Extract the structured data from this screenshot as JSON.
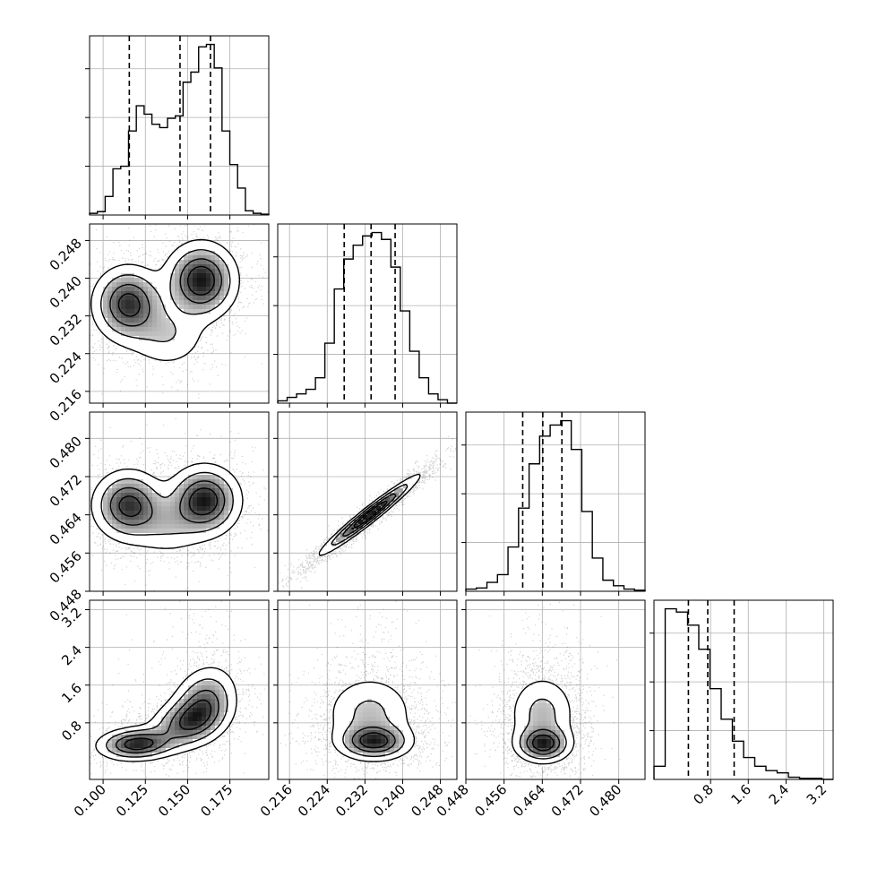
{
  "chart_data": {
    "type": "corner",
    "grid": true,
    "n_params": 4,
    "params": [
      {
        "range": [
          0.092,
          0.198
        ],
        "ticks": [
          0.1,
          0.125,
          0.15,
          0.175
        ],
        "tick_labels": [
          "0.100",
          "0.125",
          "0.150",
          "0.175"
        ]
      },
      {
        "range": [
          0.2135,
          0.2515
        ],
        "ticks": [
          0.216,
          0.224,
          0.232,
          0.24,
          0.248
        ],
        "tick_labels": [
          "0.216",
          "0.224",
          "0.232",
          "0.240",
          "0.248"
        ]
      },
      {
        "range": [
          0.448,
          0.4855
        ],
        "ticks": [
          0.448,
          0.456,
          0.464,
          0.472,
          0.48
        ],
        "tick_labels": [
          "0.448",
          "0.456",
          "0.464",
          "0.472",
          "0.480"
        ]
      },
      {
        "range": [
          -0.4,
          3.4
        ],
        "ticks": [
          0.8,
          1.6,
          2.4,
          3.2
        ],
        "tick_labels": [
          "0.8",
          "1.6",
          "2.4",
          "3.2"
        ]
      }
    ],
    "histograms": [
      {
        "param": 0,
        "edges": [
          0.092,
          0.198
        ],
        "counts": [
          2,
          4,
          22,
          55,
          58,
          100,
          130,
          120,
          108,
          104,
          115,
          118,
          158,
          170,
          200,
          203,
          175,
          100,
          60,
          32,
          5,
          2,
          1
        ],
        "quantiles": [
          0.1155,
          0.1455,
          0.1635
        ]
      },
      {
        "param": 1,
        "edges": [
          0.2135,
          0.2515
        ],
        "counts": [
          2,
          5,
          8,
          12,
          22,
          52,
          99,
          125,
          137,
          145,
          148,
          142,
          118,
          80,
          45,
          22,
          8,
          3,
          0
        ],
        "quantiles": [
          0.2276,
          0.2333,
          0.2384
        ]
      },
      {
        "param": 2,
        "edges": [
          0.448,
          0.4855
        ],
        "counts": [
          2,
          3,
          8,
          15,
          40,
          75,
          115,
          140,
          150,
          154,
          128,
          72,
          30,
          10,
          5,
          2,
          1
        ],
        "quantiles": [
          0.4599,
          0.4641,
          0.4681
        ]
      },
      {
        "param": 3,
        "edges": [
          -0.4,
          3.4
        ],
        "counts": [
          12,
          156,
          153,
          141,
          119,
          83,
          55,
          35,
          20,
          12,
          8,
          6,
          2,
          1,
          1,
          0
        ],
        "quantiles": [
          0.33,
          0.74,
          1.3
        ]
      }
    ],
    "pairs": [
      {
        "x": 0,
        "y": 1,
        "modes": [
          {
            "mx": 0.115,
            "my": 0.2345,
            "sx": 0.011,
            "sy": 0.0042,
            "rho": 0.0,
            "w": 0.4
          },
          {
            "mx": 0.158,
            "my": 0.2395,
            "sx": 0.011,
            "sy": 0.0042,
            "rho": 0.0,
            "w": 0.45
          },
          {
            "mx": 0.138,
            "my": 0.228,
            "sx": 0.013,
            "sy": 0.004,
            "rho": 0.0,
            "w": 0.15
          }
        ],
        "tail": 0.0
      },
      {
        "x": 0,
        "y": 2,
        "modes": [
          {
            "mx": 0.115,
            "my": 0.466,
            "sx": 0.011,
            "sy": 0.0038,
            "rho": 0.0,
            "w": 0.4
          },
          {
            "mx": 0.16,
            "my": 0.467,
            "sx": 0.011,
            "sy": 0.0038,
            "rho": 0.0,
            "w": 0.45
          },
          {
            "mx": 0.138,
            "my": 0.462,
            "sx": 0.013,
            "sy": 0.0036,
            "rho": 0.0,
            "w": 0.15
          }
        ],
        "tail": 0.0
      },
      {
        "x": 1,
        "y": 2,
        "modes": [
          {
            "mx": 0.233,
            "my": 0.464,
            "sx": 0.0052,
            "sy": 0.0041,
            "rho": 0.97,
            "w": 1.0
          }
        ],
        "tail": 0.0
      },
      {
        "x": 0,
        "y": 3,
        "modes": [
          {
            "mx": 0.12,
            "my": 0.35,
            "sx": 0.012,
            "sy": 0.18,
            "rho": 0.1,
            "w": 0.3
          },
          {
            "mx": 0.15,
            "my": 0.8,
            "sx": 0.012,
            "sy": 0.3,
            "rho": 0.3,
            "w": 0.35
          },
          {
            "mx": 0.16,
            "my": 1.25,
            "sx": 0.01,
            "sy": 0.4,
            "rho": 0.2,
            "w": 0.35
          }
        ],
        "tail": 0.08
      },
      {
        "x": 1,
        "y": 3,
        "modes": [
          {
            "mx": 0.234,
            "my": 0.4,
            "sx": 0.004,
            "sy": 0.2,
            "rho": 0.0,
            "w": 0.45
          },
          {
            "mx": 0.233,
            "my": 1.0,
            "sx": 0.0052,
            "sy": 0.45,
            "rho": 0.0,
            "w": 0.55
          }
        ],
        "tail": 0.08
      },
      {
        "x": 2,
        "y": 3,
        "modes": [
          {
            "mx": 0.4642,
            "my": 0.35,
            "sx": 0.003,
            "sy": 0.2,
            "rho": 0.0,
            "w": 0.45
          },
          {
            "mx": 0.464,
            "my": 1.0,
            "sx": 0.0038,
            "sy": 0.45,
            "rho": 0.0,
            "w": 0.55
          }
        ],
        "tail": 0.08
      }
    ]
  }
}
